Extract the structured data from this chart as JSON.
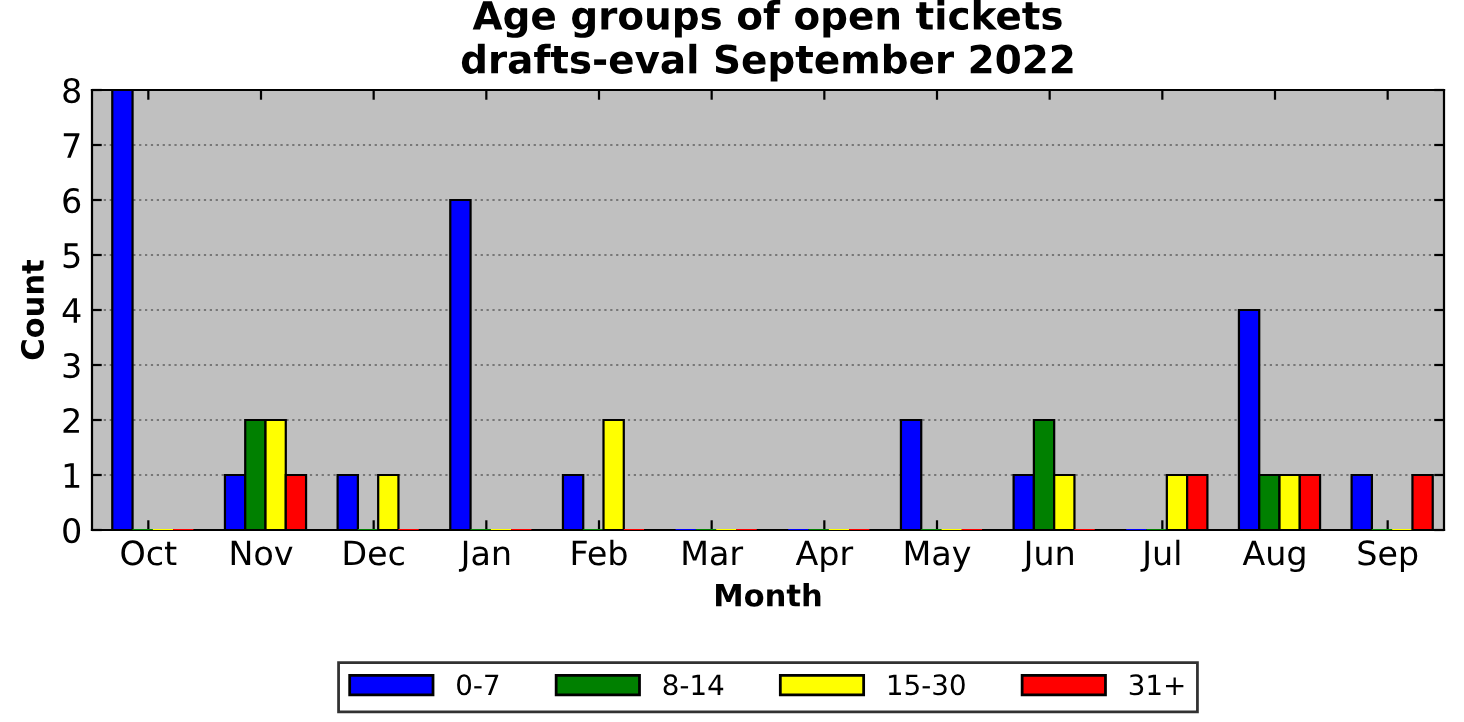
{
  "chart_data": {
    "type": "bar",
    "title": "Age groups of open tickets\ndrafts-eval September 2022",
    "xlabel": "Month",
    "ylabel": "Count",
    "categories": [
      "Oct",
      "Nov",
      "Dec",
      "Jan",
      "Feb",
      "Mar",
      "Apr",
      "May",
      "Jun",
      "Jul",
      "Aug",
      "Sep"
    ],
    "series": [
      {
        "name": "0-7",
        "color": "#0000ff",
        "values": [
          8,
          1,
          1,
          6,
          1,
          0,
          0,
          2,
          1,
          0,
          4,
          1
        ]
      },
      {
        "name": "8-14",
        "color": "#008000",
        "values": [
          0,
          2,
          0,
          0,
          0,
          0,
          0,
          0,
          2,
          0,
          1,
          0
        ]
      },
      {
        "name": "15-30",
        "color": "#ffff00",
        "values": [
          0,
          2,
          1,
          0,
          2,
          0,
          0,
          0,
          1,
          1,
          1,
          0
        ]
      },
      {
        "name": "31+",
        "color": "#ff0000",
        "values": [
          0,
          1,
          0,
          0,
          0,
          0,
          0,
          0,
          0,
          1,
          1,
          1
        ]
      }
    ],
    "ylim": [
      0,
      8
    ],
    "yticks": [
      0,
      1,
      2,
      3,
      4,
      5,
      6,
      7,
      8
    ],
    "grid": "y",
    "legend": "bottom"
  }
}
